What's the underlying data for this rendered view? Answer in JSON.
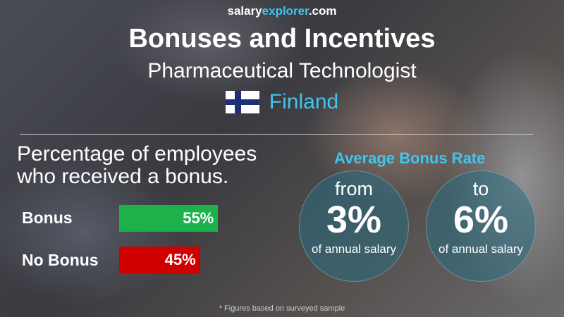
{
  "site": {
    "part1": "salary",
    "part2": "explorer",
    "part3": ".com"
  },
  "title": "Bonuses and Incentives",
  "subtitle": "Pharmaceutical Technologist",
  "country": "Finland",
  "section_heading_line1": "Percentage of employees",
  "section_heading_line2": "who received a bonus.",
  "chart_data": {
    "type": "bar",
    "categories": [
      "Bonus",
      "No Bonus"
    ],
    "values": [
      55,
      45
    ],
    "value_labels": [
      "55%",
      "45%"
    ],
    "colors": [
      "#1db14b",
      "#d10000"
    ],
    "ylim": [
      0,
      100
    ]
  },
  "average": {
    "heading": "Average Bonus Rate",
    "from": {
      "word": "from",
      "value": "3%",
      "caption": "of annual salary"
    },
    "to": {
      "word": "to",
      "value": "6%",
      "caption": "of annual salary"
    }
  },
  "footnote": "* Figures based on surveyed sample"
}
